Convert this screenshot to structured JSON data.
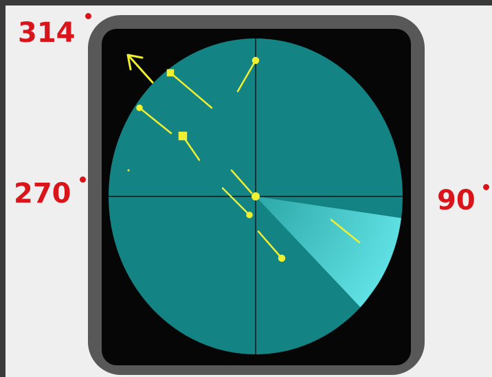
{
  "labels": {
    "heading_top": "314",
    "heading_left": "270",
    "heading_right": "90"
  },
  "colors": {
    "scope": "#148384",
    "sweep": "#5fe0e2",
    "bezel": "#585858",
    "mask": "#060606",
    "target": "#f0f033",
    "label": "#d9141b"
  },
  "icons": {
    "heading_marker": "arrow-up-left-icon"
  }
}
